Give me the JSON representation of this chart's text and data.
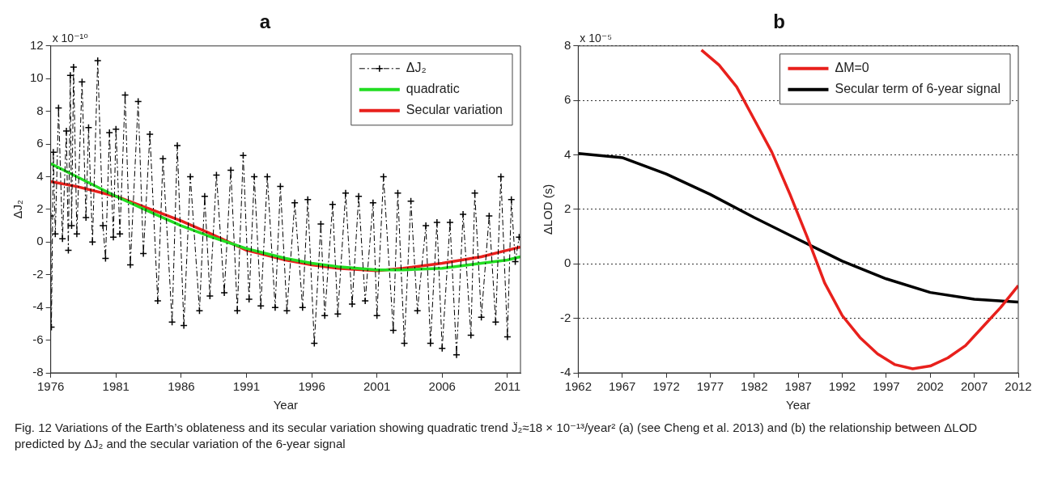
{
  "chart_data": [
    {
      "type": "line",
      "title": "a",
      "xlabel": "Year",
      "ylabel": "ΔJ₂",
      "xlim": [
        1976,
        2012
      ],
      "xticks": [
        1976,
        1981,
        1986,
        1991,
        1996,
        2001,
        2006,
        2011
      ],
      "ylim": [
        -8,
        12
      ],
      "yticks": [
        -8,
        -6,
        -4,
        -2,
        0,
        2,
        4,
        6,
        8,
        10,
        12
      ],
      "grid": false,
      "legend": "top right",
      "annotations": [
        "x 10⁻¹⁰",
        "Fig. 12 Variations of the Earth’s oblateness and its secular variation showing quadratic trend J̈₂≈18 × 10⁻¹³/year² (a) (see Cheng et al. 2013) and (b) the relationship between ΔLOD predicted by ΔJ₂ and the secular variation of the 6-year signal"
      ],
      "series": [
        {
          "name": "ΔJ₂",
          "color": "#000000",
          "marker": "cross",
          "line_style": "dashed",
          "x": [
            1976.0,
            1976.05,
            1976.2,
            1976.35,
            1976.6,
            1976.9,
            1977.2,
            1977.35,
            1977.5,
            1977.6,
            1977.75,
            1978.0,
            1978.4,
            1978.7,
            1978.9,
            1979.2,
            1979.6,
            1980.0,
            1980.2,
            1980.5,
            1980.8,
            1981.0,
            1981.3,
            1981.7,
            1982.1,
            1982.7,
            1983.1,
            1983.6,
            1984.2,
            1984.6,
            1985.3,
            1985.7,
            1986.2,
            1986.7,
            1987.4,
            1987.8,
            1988.2,
            1988.7,
            1989.3,
            1989.8,
            1990.3,
            1990.75,
            1991.2,
            1991.6,
            1992.1,
            1992.6,
            1993.2,
            1993.6,
            1994.1,
            1994.7,
            1995.3,
            1995.7,
            1996.2,
            1996.7,
            1997.0,
            1997.6,
            1998.0,
            1998.6,
            1999.1,
            1999.6,
            2000.1,
            2000.7,
            2001.0,
            2001.5,
            2002.25,
            2002.6,
            2003.1,
            2003.6,
            2004.1,
            2004.75,
            2005.1,
            2005.6,
            2006.0,
            2006.6,
            2007.1,
            2007.6,
            2008.2,
            2008.5,
            2009.0,
            2009.6,
            2010.1,
            2010.5,
            2011.0,
            2011.3,
            2011.6,
            2011.9
          ],
          "values": [
            1.6,
            -5.2,
            5.5,
            0.5,
            8.2,
            0.2,
            6.8,
            -0.5,
            10.2,
            1.0,
            10.7,
            0.5,
            9.8,
            1.5,
            7.0,
            0.0,
            11.1,
            1.0,
            -1.0,
            6.7,
            0.3,
            6.9,
            0.5,
            9.0,
            -1.4,
            8.6,
            -0.7,
            6.6,
            -3.6,
            5.1,
            -4.9,
            5.9,
            -5.1,
            4.0,
            -4.2,
            2.8,
            -3.3,
            4.1,
            -3.1,
            4.4,
            -4.2,
            5.3,
            -3.5,
            4.0,
            -3.9,
            4.0,
            -4.0,
            3.4,
            -4.2,
            2.4,
            -4.0,
            2.6,
            -6.2,
            1.1,
            -4.5,
            2.3,
            -4.4,
            3.0,
            -3.8,
            2.8,
            -3.6,
            2.4,
            -4.5,
            4.0,
            -5.4,
            3.0,
            -6.2,
            2.5,
            -4.2,
            1.0,
            -6.2,
            1.2,
            -6.5,
            1.2,
            -6.9,
            1.7,
            -5.7,
            3.0,
            -4.6,
            1.6,
            -4.9,
            4.0,
            -5.8,
            2.6,
            -1.2,
            0.3
          ]
        },
        {
          "name": "quadratic",
          "color": "#22dd22",
          "x": [
            1976,
            1978,
            1981,
            1984,
            1986,
            1988,
            1991,
            1994,
            1996,
            1998,
            2001,
            2003,
            2006,
            2009,
            2011,
            2012
          ],
          "values": [
            4.8,
            4.0,
            2.8,
            1.7,
            1.0,
            0.4,
            -0.4,
            -1.0,
            -1.3,
            -1.5,
            -1.7,
            -1.7,
            -1.6,
            -1.3,
            -1.1,
            -0.9
          ]
        },
        {
          "name": "Secular variation",
          "color": "#e8201c",
          "x": [
            1976,
            1978,
            1981,
            1984,
            1986,
            1988,
            1991,
            1994,
            1996,
            1998,
            2001,
            2003,
            2006,
            2009,
            2011,
            2012
          ],
          "values": [
            3.7,
            3.4,
            2.8,
            1.9,
            1.3,
            0.6,
            -0.5,
            -1.1,
            -1.4,
            -1.6,
            -1.75,
            -1.6,
            -1.3,
            -0.9,
            -0.5,
            -0.3
          ]
        }
      ]
    },
    {
      "type": "line",
      "title": "b",
      "xlabel": "Year",
      "ylabel": "ΔLOD (s)",
      "xlim": [
        1962,
        2012
      ],
      "xticks": [
        1962,
        1967,
        1972,
        1977,
        1982,
        1987,
        1992,
        1997,
        2002,
        2007,
        2012
      ],
      "ylim": [
        -4,
        8
      ],
      "yticks": [
        -4,
        -2,
        0,
        2,
        4,
        6,
        8
      ],
      "grid": "y",
      "legend": "top right",
      "annotations": [
        "x 10⁻⁵"
      ],
      "series": [
        {
          "name": "ΔM=0",
          "color": "#e8201c",
          "x": [
            1976,
            1978,
            1980,
            1982,
            1984,
            1986,
            1988,
            1990,
            1992,
            1994,
            1996,
            1998,
            2000,
            2002,
            2004,
            2006,
            2008,
            2010,
            2012
          ],
          "values": [
            7.85,
            7.3,
            6.5,
            5.3,
            4.1,
            2.6,
            1.0,
            -0.7,
            -1.9,
            -2.7,
            -3.3,
            -3.7,
            -3.85,
            -3.75,
            -3.45,
            -3.0,
            -2.3,
            -1.6,
            -0.8
          ]
        },
        {
          "name": "Secular term of 6-year signal",
          "color": "#000000",
          "x": [
            1962,
            1967,
            1972,
            1977,
            1982,
            1987,
            1992,
            1997,
            2002,
            2007,
            2012
          ],
          "values": [
            4.05,
            3.9,
            3.3,
            2.55,
            1.7,
            0.9,
            0.1,
            -0.55,
            -1.05,
            -1.3,
            -1.4
          ]
        }
      ]
    }
  ]
}
